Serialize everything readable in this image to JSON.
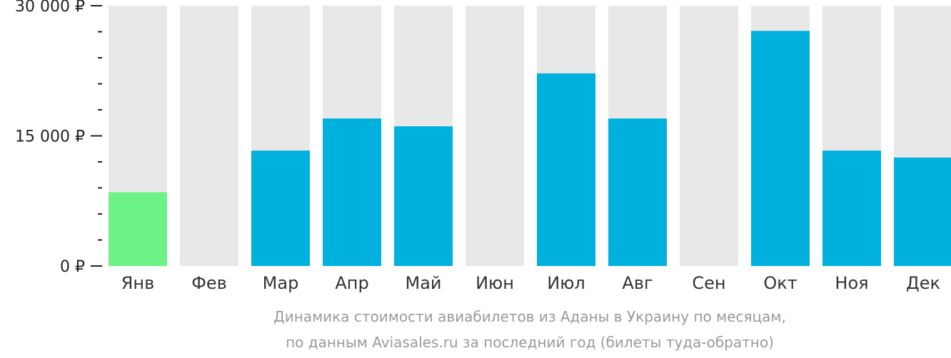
{
  "chart_data": {
    "type": "bar",
    "categories": [
      "Янв",
      "Фев",
      "Мар",
      "Апр",
      "Май",
      "Июн",
      "Июл",
      "Авг",
      "Сен",
      "Окт",
      "Ноя",
      "Дек"
    ],
    "values": [
      8500,
      null,
      13300,
      17000,
      16100,
      null,
      22200,
      17000,
      null,
      27100,
      13300,
      12500
    ],
    "ylim": [
      0,
      30000
    ],
    "y_ticks": [
      {
        "value": 0,
        "label": "0 ₽"
      },
      {
        "value": 15000,
        "label": "15 000 ₽"
      },
      {
        "value": 30000,
        "label": "30 000 ₽"
      }
    ],
    "minor_ticks": [
      3000,
      6000,
      9000,
      12000,
      18000,
      21000,
      24000,
      27000
    ],
    "highlight_index": 0,
    "colors": {
      "bar": "#00b0dd",
      "highlight": "#6cf285",
      "background_bar": "#e8e8e8",
      "axis": "#222222"
    }
  },
  "caption": {
    "line1": "Динамика стоимости авиабилетов из Аданы в Украину по месяцам,",
    "line2": "по данным Aviasales.ru за последний год (билеты туда-обратно)"
  }
}
